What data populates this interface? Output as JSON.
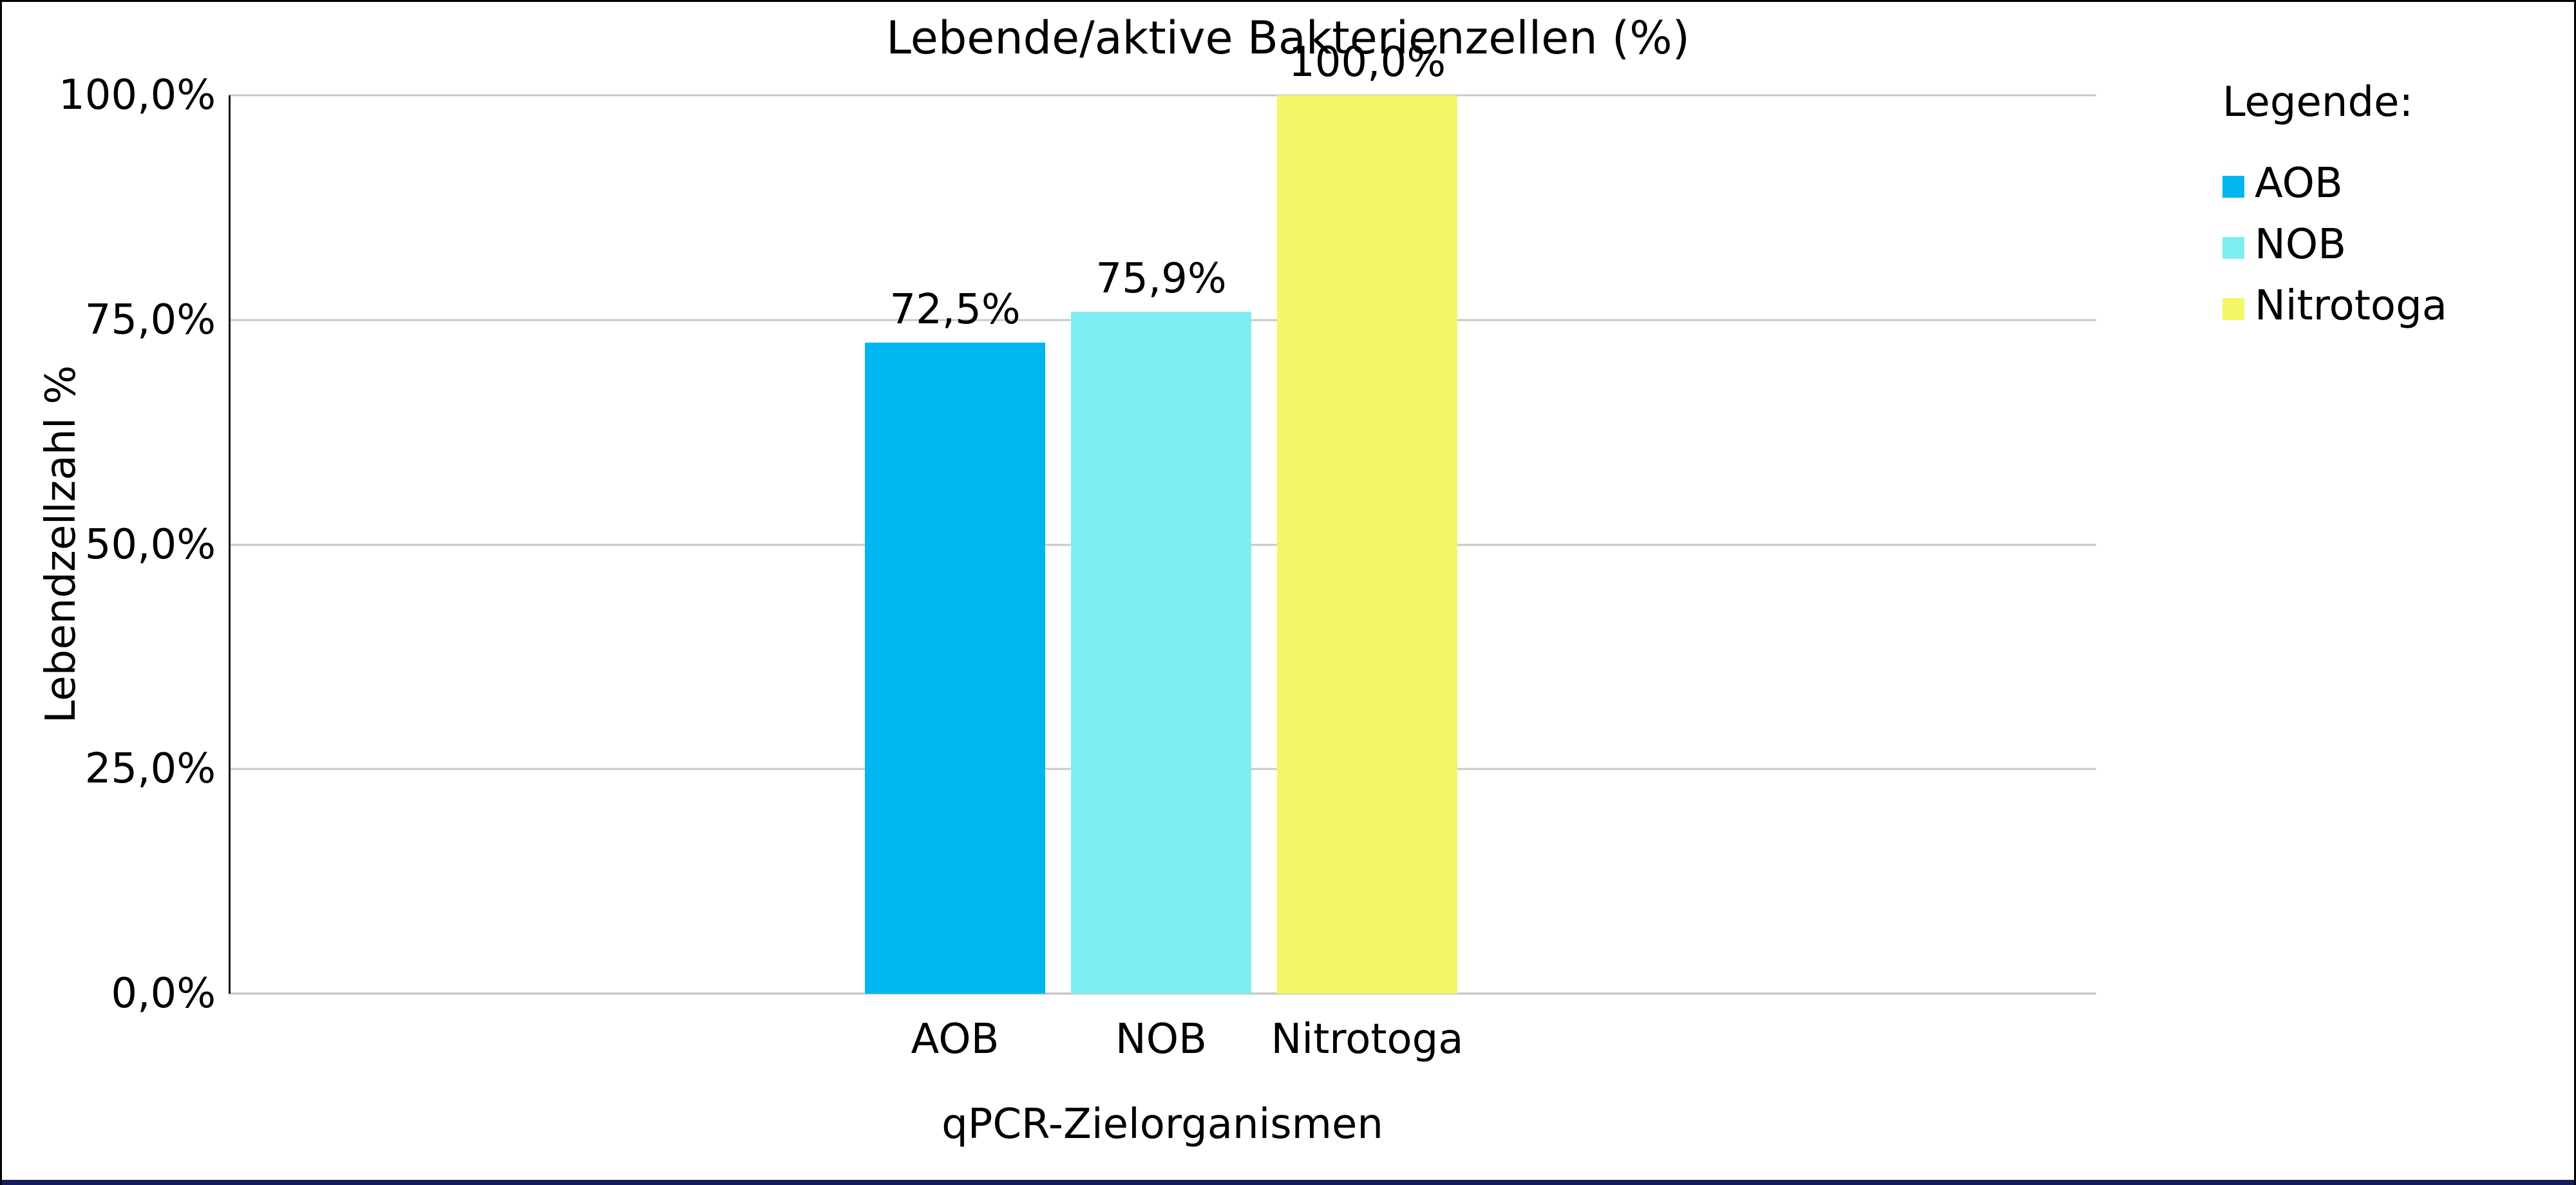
{
  "window": {
    "border_color": "#000000",
    "bottom_bar_color": "#151d5e"
  },
  "chart_data": {
    "type": "bar",
    "title": "Lebende/aktive Bakterienzellen (%)",
    "xlabel": "qPCR-Zielorganismen",
    "ylabel": "Lebendzellzahl %",
    "categories": [
      "AOB",
      "NOB",
      "Nitrotoga"
    ],
    "values": [
      72.5,
      75.9,
      100.0
    ],
    "value_labels": [
      "72,5%",
      "75,9%",
      "100,0%"
    ],
    "bar_colors": [
      "#00b6f1",
      "#7feef2",
      "#f3f768"
    ],
    "ylim": [
      0,
      100
    ],
    "yticks": [
      {
        "value": 0,
        "label": "0,0%"
      },
      {
        "value": 25,
        "label": "25,0%"
      },
      {
        "value": 50,
        "label": "50,0%"
      },
      {
        "value": 75,
        "label": "75,0%"
      },
      {
        "value": 100,
        "label": "100,0%"
      }
    ],
    "grid": "horizontal",
    "gridline_color": "#c8c8c8",
    "legend_position": "right"
  },
  "legend": {
    "heading": "Legende:",
    "items": [
      {
        "label": "AOB",
        "color": "#00b6f1"
      },
      {
        "label": "NOB",
        "color": "#7feef2"
      },
      {
        "label": "Nitrotoga",
        "color": "#f3f768"
      }
    ]
  }
}
